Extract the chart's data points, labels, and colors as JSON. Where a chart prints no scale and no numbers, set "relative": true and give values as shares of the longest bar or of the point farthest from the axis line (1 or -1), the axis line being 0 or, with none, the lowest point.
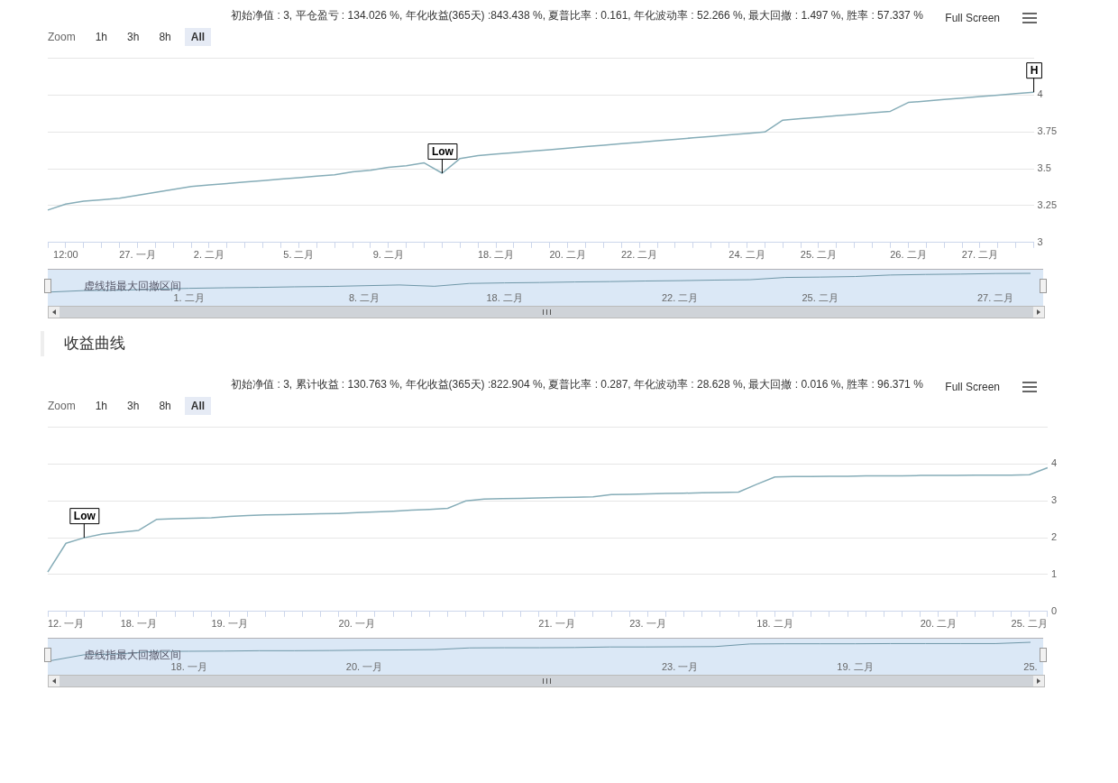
{
  "chart_data": [
    {
      "type": "line",
      "title": "初始净值 : 3, 平仓盈亏 : 134.026 %, 年化收益(365天) :843.438 %, 夏普比率 : 0.161, 年化波动率 : 52.266 %, 最大回撤 : 1.497 %, 胜率 : 57.337 %",
      "annotations": [
        "Zoom",
        "1h",
        "3h",
        "8h",
        "All",
        "Full Screen",
        {
          "text": "Low",
          "y": 3.47
        },
        {
          "text": "H",
          "y": 4.02
        }
      ],
      "categories": [
        null,
        "12:00",
        null,
        null,
        null,
        "27. 一月",
        null,
        null,
        null,
        "2. 二月",
        null,
        null,
        null,
        null,
        "5. 二月",
        null,
        null,
        null,
        null,
        "9. 二月",
        null,
        null,
        null,
        null,
        null,
        "18. 二月",
        null,
        null,
        null,
        "20. 二月",
        null,
        null,
        null,
        "22. 二月",
        null,
        null,
        null,
        null,
        null,
        "24. 二月",
        null,
        null,
        null,
        "25. 二月",
        null,
        null,
        null,
        null,
        "26. 二月",
        null,
        null,
        null,
        "27. 二月",
        null,
        null,
        null
      ],
      "series": [
        {
          "color": "#86adb8",
          "values": [
            3.22,
            3.26,
            3.28,
            3.29,
            3.3,
            3.32,
            3.34,
            3.36,
            3.38,
            3.39,
            3.4,
            3.41,
            3.42,
            3.43,
            3.44,
            3.45,
            3.46,
            3.48,
            3.49,
            3.51,
            3.52,
            3.54,
            3.47,
            3.57,
            3.59,
            3.6,
            3.61,
            3.62,
            3.63,
            3.64,
            3.65,
            3.66,
            3.67,
            3.68,
            3.69,
            3.7,
            3.71,
            3.72,
            3.73,
            3.74,
            3.75,
            3.83,
            3.84,
            3.85,
            3.86,
            3.87,
            3.88,
            3.89,
            3.95,
            3.96,
            3.97,
            3.98,
            3.99,
            4.0,
            4.01,
            4.02
          ]
        }
      ],
      "ylim": [
        3,
        4.25
      ],
      "yticks": [
        3,
        3.25,
        3.5,
        3.75,
        4,
        {
          "value": 4.25,
          "label": null
        }
      ],
      "grid": "y"
    },
    {
      "type": "line",
      "relative": true,
      "tick_labels": "x",
      "annotations": [
        "虚线指最大回撤区间"
      ],
      "categories": [
        null,
        null,
        null,
        null,
        "1. 二月",
        null,
        null,
        null,
        null,
        "8. 二月",
        null,
        null,
        null,
        "18. 二月",
        null,
        null,
        null,
        null,
        "22. 二月",
        null,
        null,
        null,
        "25. 二月",
        null,
        null,
        null,
        null,
        "27. 二月",
        null
      ],
      "series": [
        {
          "color": "#6f97a8",
          "values": [
            0,
            0.08,
            0.1,
            0.15,
            0.2,
            0.23,
            0.25,
            0.28,
            0.3,
            0.34,
            0.38,
            0.31,
            0.46,
            0.49,
            0.51,
            0.54,
            0.56,
            0.59,
            0.61,
            0.64,
            0.66,
            0.78,
            0.8,
            0.83,
            0.91,
            0.94,
            0.96,
            0.99,
            1
          ]
        }
      ]
    },
    {
      "type": "line",
      "title": "收益曲线",
      "subtitle": "初始净值 : 3, 累计收益 : 130.763 %, 年化收益(365天) :822.904 %, 夏普比率 : 0.287, 年化波动率 : 28.628 %, 最大回撤 : 0.016 %, 胜率 : 96.371 %",
      "annotations": [
        "Zoom",
        "1h",
        "3h",
        "8h",
        "All",
        "Full Screen",
        {
          "text": "Low",
          "y": 2.0
        }
      ],
      "categories": [
        null,
        "12. 一月",
        null,
        null,
        null,
        "18. 一月",
        null,
        null,
        null,
        null,
        "19. 一月",
        null,
        null,
        null,
        null,
        null,
        null,
        "20. 一月",
        null,
        null,
        null,
        null,
        null,
        null,
        null,
        null,
        null,
        null,
        "21. 一月",
        null,
        null,
        null,
        null,
        "23. 一月",
        null,
        null,
        null,
        null,
        null,
        null,
        "18. 二月",
        null,
        null,
        null,
        null,
        null,
        null,
        null,
        null,
        "20. 二月",
        null,
        null,
        null,
        null,
        "25. 二月",
        null
      ],
      "series": [
        {
          "color": "#86adb8",
          "values": [
            1.07,
            1.85,
            2.0,
            2.1,
            2.15,
            2.2,
            2.5,
            2.52,
            2.53,
            2.54,
            2.58,
            2.6,
            2.62,
            2.63,
            2.64,
            2.65,
            2.66,
            2.68,
            2.7,
            2.72,
            2.75,
            2.77,
            2.8,
            3.0,
            3.05,
            3.06,
            3.07,
            3.08,
            3.09,
            3.1,
            3.11,
            3.17,
            3.18,
            3.19,
            3.2,
            3.21,
            3.22,
            3.23,
            3.24,
            3.45,
            3.65,
            3.66,
            3.66,
            3.67,
            3.67,
            3.68,
            3.68,
            3.68,
            3.69,
            3.69,
            3.69,
            3.7,
            3.7,
            3.7,
            3.71,
            3.9
          ]
        }
      ],
      "ylim": [
        0,
        5
      ],
      "yticks": [
        0,
        1,
        2,
        3,
        4,
        {
          "value": 5,
          "label": null
        }
      ],
      "grid": "y"
    },
    {
      "type": "line",
      "relative": true,
      "tick_labels": "x",
      "annotations": [
        "虚线指最大回撤区间"
      ],
      "categories": [
        null,
        null,
        null,
        null,
        "18. 一月",
        null,
        null,
        null,
        null,
        "20. 一月",
        null,
        null,
        null,
        null,
        null,
        null,
        null,
        null,
        "23. 一月",
        null,
        null,
        null,
        null,
        "19. 二月",
        null,
        null,
        null,
        null,
        "25."
      ],
      "series": [
        {
          "color": "#6f97a8",
          "values": [
            0,
            0.33,
            0.38,
            0.51,
            0.52,
            0.53,
            0.55,
            0.55,
            0.56,
            0.58,
            0.59,
            0.61,
            0.7,
            0.71,
            0.71,
            0.72,
            0.75,
            0.75,
            0.76,
            0.77,
            0.91,
            0.92,
            0.92,
            0.92,
            0.93,
            0.93,
            0.93,
            0.93,
            1
          ]
        }
      ]
    }
  ]
}
